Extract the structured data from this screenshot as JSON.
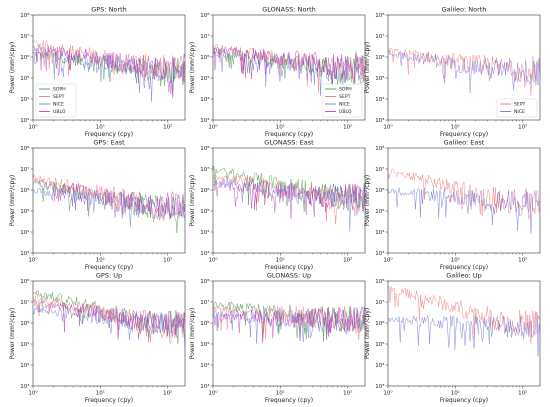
{
  "figure": {
    "colors": {
      "SOPH": "#2f8f2f",
      "SEPT": "#f06a6a",
      "NICE": "#6a6ad8",
      "UBLO": "#b030c0"
    },
    "xlabel": "Frequency (cpy)",
    "ylabel": "Power (mm²/cpy)"
  },
  "chart_data": [
    {
      "type": "line",
      "title": "GPS: North",
      "x_scale": "log",
      "y_scale": "log",
      "xlim": [
        1,
        180
      ],
      "ylim": [
        1000,
        100000000
      ],
      "x_ticks": [
        "10⁰",
        "10¹",
        "10²"
      ],
      "y_ticks": [
        "10³",
        "10⁴",
        "10⁵",
        "10⁶",
        "10⁷",
        "10⁸"
      ],
      "series": [
        {
          "name": "SOPH",
          "start": 1500000,
          "end": 200000
        },
        {
          "name": "SEPT",
          "start": 5000000,
          "end": 300000
        },
        {
          "name": "NICE",
          "start": 2000000,
          "end": 250000
        },
        {
          "name": "UBLO",
          "start": 3000000,
          "end": 300000
        }
      ],
      "legend": [
        "SOPH",
        "SEPT",
        "NICE",
        "UBLO"
      ],
      "legend_position": "lower-left"
    },
    {
      "type": "line",
      "title": "GLONASS: North",
      "x_scale": "log",
      "y_scale": "log",
      "xlim": [
        1,
        180
      ],
      "ylim": [
        1000,
        100000000
      ],
      "x_ticks": [
        "10⁰",
        "10¹",
        "10²"
      ],
      "y_ticks": [
        "10³",
        "10⁴",
        "10⁵",
        "10⁶",
        "10⁷",
        "10⁸"
      ],
      "series": [
        {
          "name": "SOPH",
          "start": 2000000,
          "end": 250000
        },
        {
          "name": "SEPT",
          "start": 3000000,
          "end": 300000
        },
        {
          "name": "NICE",
          "start": 1500000,
          "end": 250000
        },
        {
          "name": "UBLO",
          "start": 2500000,
          "end": 400000
        }
      ],
      "legend": [
        "SOPH",
        "SEPT",
        "NICE",
        "UBLO"
      ],
      "legend_position": "lower-right"
    },
    {
      "type": "line",
      "title": "Galileo: North",
      "x_scale": "log",
      "y_scale": "log",
      "xlim": [
        1,
        180
      ],
      "ylim": [
        1000,
        100000000
      ],
      "x_ticks": [
        "10⁰",
        "10¹",
        "10²"
      ],
      "y_ticks": [
        "10³",
        "10⁴",
        "10⁵",
        "10⁶",
        "10⁷",
        "10⁸"
      ],
      "series": [
        {
          "name": "SEPT",
          "start": 2000000,
          "end": 250000
        },
        {
          "name": "NICE",
          "start": 1500000,
          "end": 200000
        }
      ],
      "legend": [
        "SEPT",
        "NICE"
      ],
      "legend_position": "lower-right"
    },
    {
      "type": "line",
      "title": "GPS: East",
      "x_scale": "log",
      "y_scale": "log",
      "xlim": [
        1,
        180
      ],
      "ylim": [
        1000,
        100000000
      ],
      "x_ticks": [
        "10⁰",
        "10¹",
        "10²"
      ],
      "y_ticks": [
        "10³",
        "10⁴",
        "10⁵",
        "10⁶",
        "10⁷",
        "10⁸"
      ],
      "series": [
        {
          "name": "SOPH",
          "start": 2000000,
          "end": 150000
        },
        {
          "name": "SEPT",
          "start": 4000000,
          "end": 200000
        },
        {
          "name": "NICE",
          "start": 1000000,
          "end": 150000
        },
        {
          "name": "UBLO",
          "start": 2500000,
          "end": 200000
        }
      ]
    },
    {
      "type": "line",
      "title": "GLONASS: East",
      "x_scale": "log",
      "y_scale": "log",
      "xlim": [
        1,
        180
      ],
      "ylim": [
        1000,
        100000000
      ],
      "x_ticks": [
        "10⁰",
        "10¹",
        "10²"
      ],
      "y_ticks": [
        "10³",
        "10⁴",
        "10⁵",
        "10⁶",
        "10⁷",
        "10⁸"
      ],
      "series": [
        {
          "name": "SOPH",
          "start": 10000000,
          "end": 500000
        },
        {
          "name": "SEPT",
          "start": 5000000,
          "end": 400000
        },
        {
          "name": "NICE",
          "start": 3000000,
          "end": 400000
        },
        {
          "name": "UBLO",
          "start": 2000000,
          "end": 500000
        }
      ]
    },
    {
      "type": "line",
      "title": "Galileo: East",
      "x_scale": "log",
      "y_scale": "log",
      "xlim": [
        1,
        180
      ],
      "ylim": [
        1000,
        100000000
      ],
      "x_ticks": [
        "10⁰",
        "10¹",
        "10²"
      ],
      "y_ticks": [
        "10³",
        "10⁴",
        "10⁵",
        "10⁶",
        "10⁷",
        "10⁸"
      ],
      "series": [
        {
          "name": "SEPT",
          "start": 8000000,
          "end": 300000
        },
        {
          "name": "NICE",
          "start": 1000000,
          "end": 250000
        }
      ]
    },
    {
      "type": "line",
      "title": "GPS: Up",
      "x_scale": "log",
      "y_scale": "log",
      "xlim": [
        1,
        180
      ],
      "ylim": [
        1000,
        100000000
      ],
      "x_ticks": [
        "10⁰",
        "10¹",
        "10²"
      ],
      "y_ticks": [
        "10³",
        "10⁴",
        "10⁵",
        "10⁶",
        "10⁷",
        "10⁸"
      ],
      "series": [
        {
          "name": "SOPH",
          "start": 30000000,
          "end": 1000000
        },
        {
          "name": "SEPT",
          "start": 20000000,
          "end": 800000
        },
        {
          "name": "NICE",
          "start": 5000000,
          "end": 800000
        },
        {
          "name": "UBLO",
          "start": 10000000,
          "end": 1000000
        }
      ]
    },
    {
      "type": "line",
      "title": "GLONASS: Up",
      "x_scale": "log",
      "y_scale": "log",
      "xlim": [
        1,
        180
      ],
      "ylim": [
        1000,
        100000000
      ],
      "x_ticks": [
        "10⁰",
        "10¹",
        "10²"
      ],
      "y_ticks": [
        "10³",
        "10⁴",
        "10⁵",
        "10⁶",
        "10⁷",
        "10⁸"
      ],
      "series": [
        {
          "name": "SOPH",
          "start": 8000000,
          "end": 1500000
        },
        {
          "name": "SEPT",
          "start": 5000000,
          "end": 1500000
        },
        {
          "name": "NICE",
          "start": 3000000,
          "end": 1200000
        },
        {
          "name": "UBLO",
          "start": 2000000,
          "end": 1500000
        }
      ]
    },
    {
      "type": "line",
      "title": "Galileo: Up",
      "x_scale": "log",
      "y_scale": "log",
      "xlim": [
        1,
        180
      ],
      "ylim": [
        1000,
        100000000
      ],
      "x_ticks": [
        "10⁰",
        "10¹",
        "10²"
      ],
      "y_ticks": [
        "10³",
        "10⁴",
        "10⁵",
        "10⁶",
        "10⁷",
        "10⁸"
      ],
      "series": [
        {
          "name": "SEPT",
          "start": 50000000,
          "end": 1000000
        },
        {
          "name": "NICE",
          "start": 1500000,
          "end": 700000
        }
      ]
    }
  ]
}
